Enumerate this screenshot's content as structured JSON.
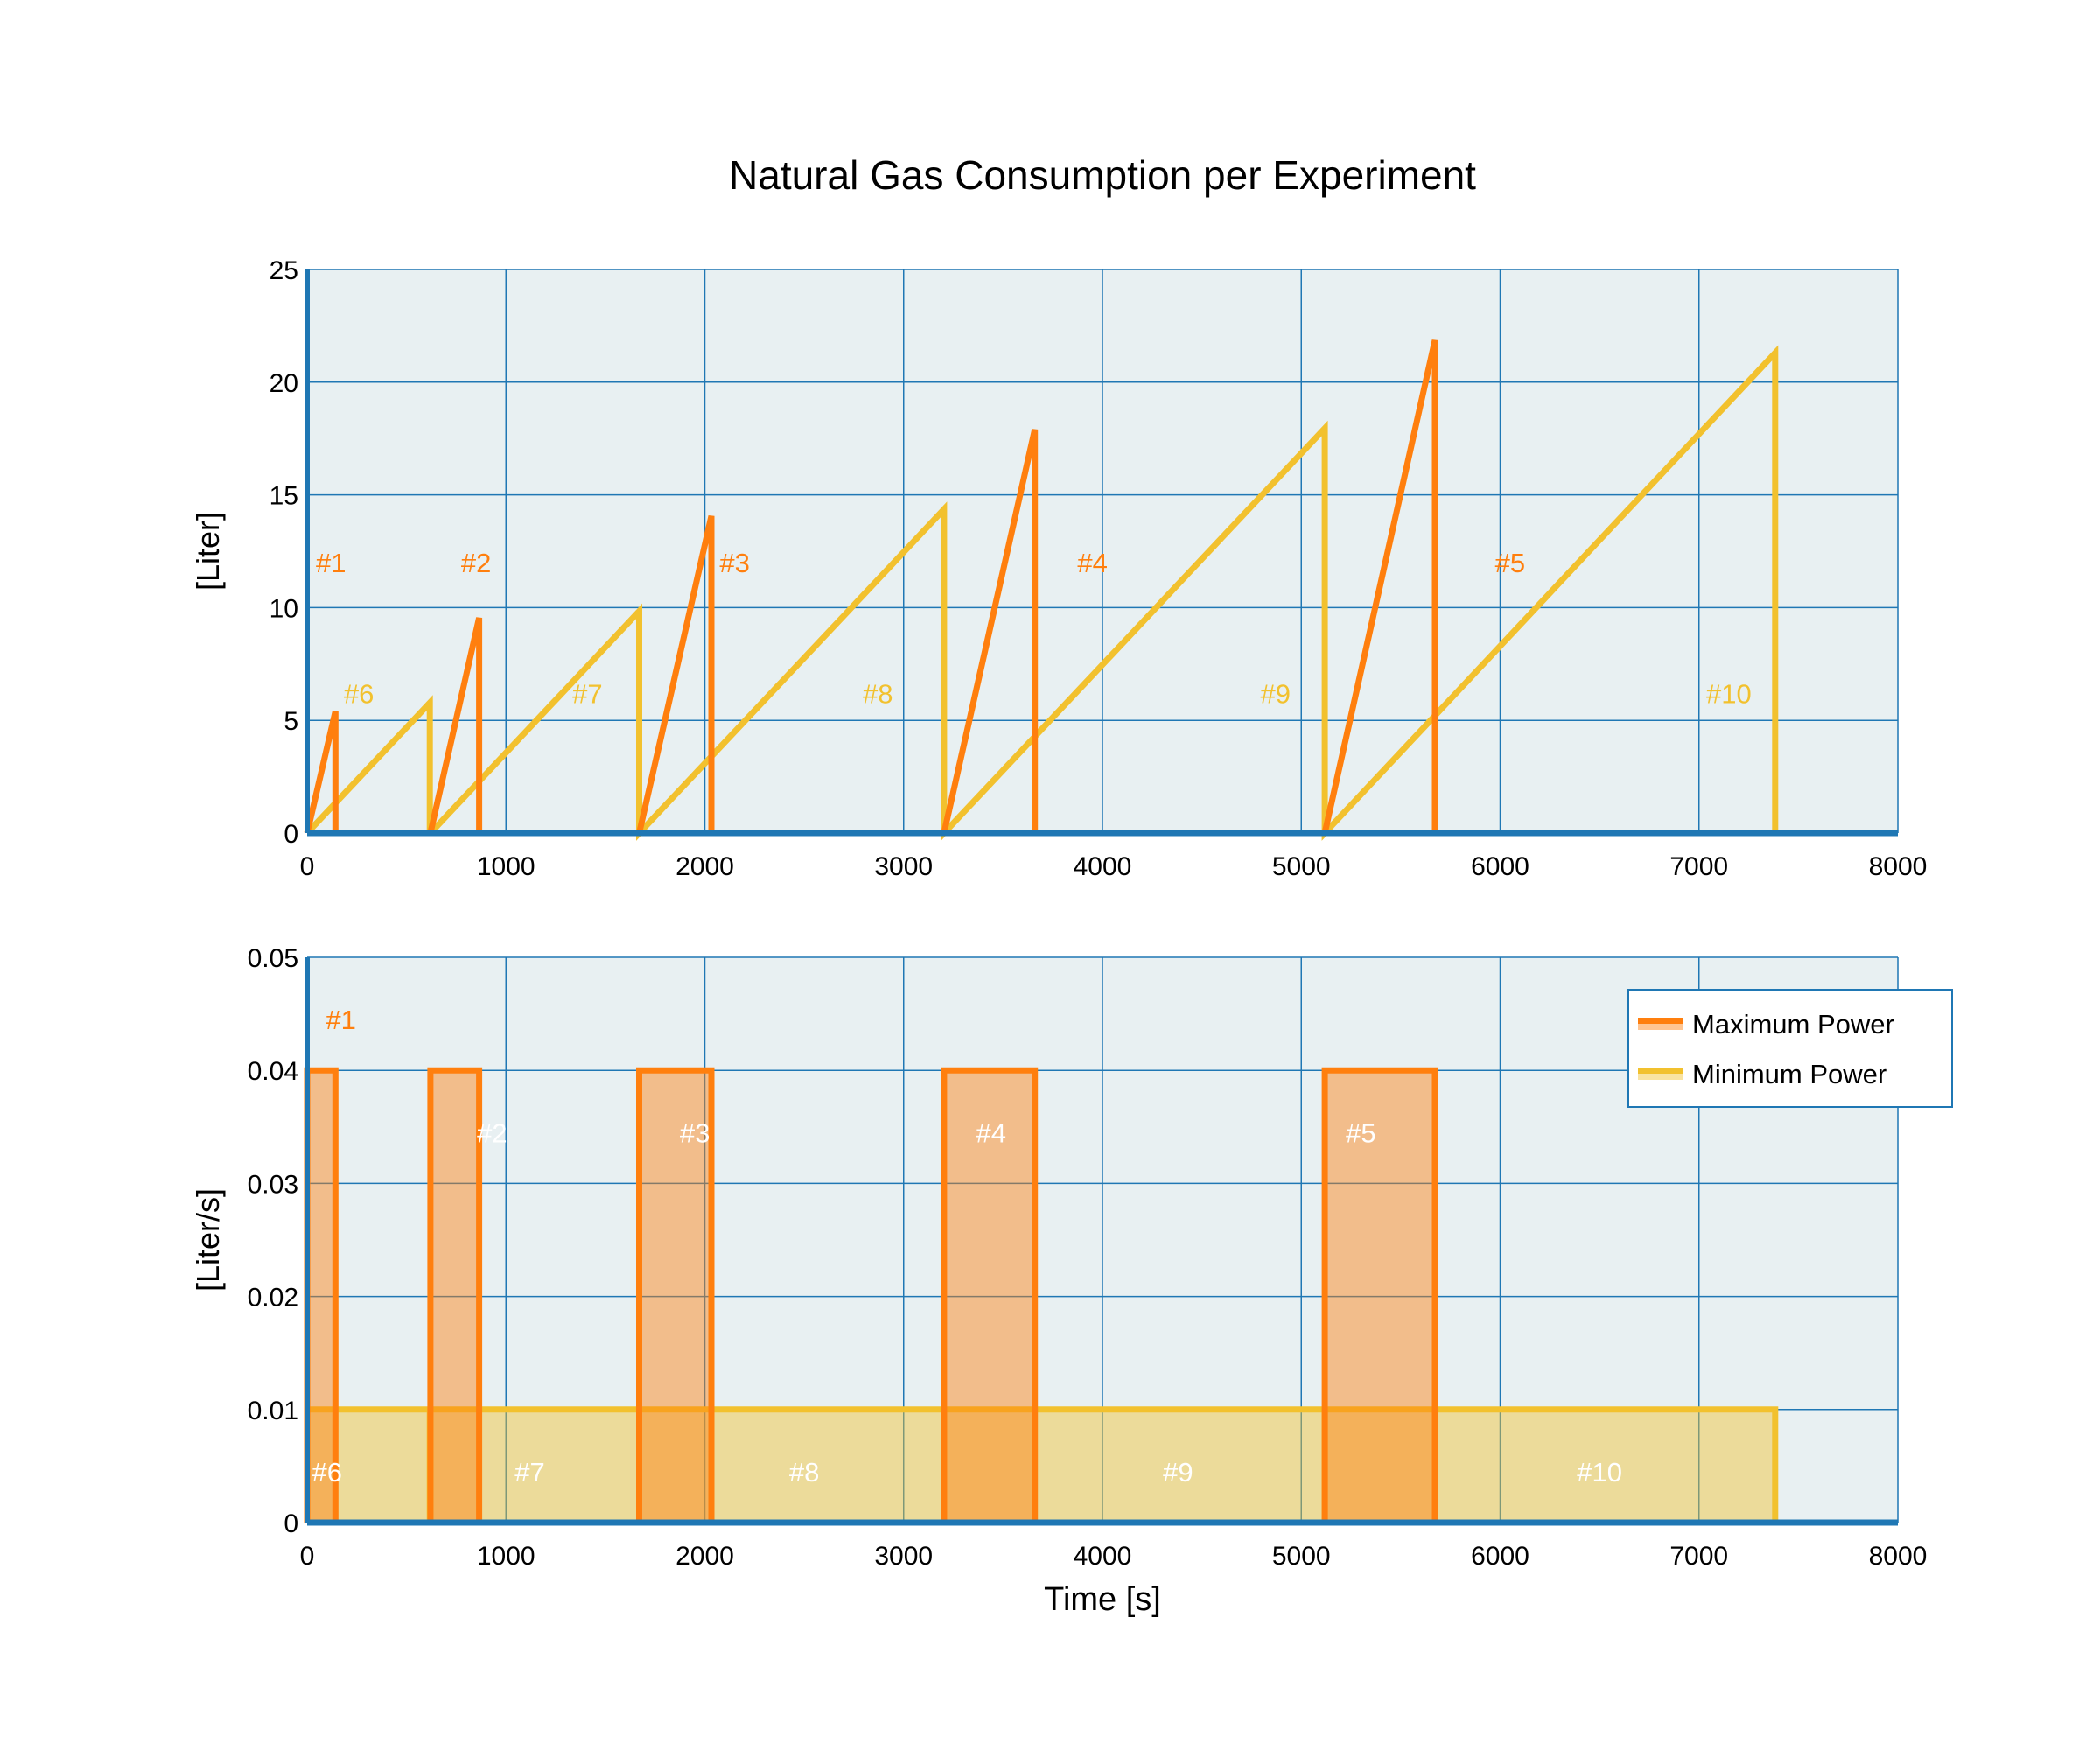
{
  "chart_data": [
    {
      "type": "line",
      "title": "Natural Gas Consumption per Experiment",
      "xlabel": "",
      "ylabel": "[Liter]",
      "xlim": [
        0,
        8000
      ],
      "ylim": [
        0,
        25
      ],
      "xticks": [
        0,
        1000,
        2000,
        3000,
        4000,
        5000,
        6000,
        7000,
        8000
      ],
      "yticks": [
        0,
        5,
        10,
        15,
        20,
        25
      ],
      "grid": true,
      "series": [
        {
          "name": "Maximum Power",
          "color": "#ff7f0e",
          "experiments": [
            {
              "label": "#1",
              "start": 0,
              "end": 142,
              "peak": 5.4
            },
            {
              "label": "#2",
              "start": 620,
              "end": 865,
              "peak": 9.55
            },
            {
              "label": "#3",
              "start": 1670,
              "end": 2033,
              "peak": 14.06
            },
            {
              "label": "#4",
              "start": 3203,
              "end": 3660,
              "peak": 17.9
            },
            {
              "label": "#5",
              "start": 5118,
              "end": 5672,
              "peak": 21.86
            }
          ]
        },
        {
          "name": "Minimum Power",
          "color": "#f2c12e",
          "experiments": [
            {
              "label": "#6",
              "start": 0,
              "end": 617,
              "peak": 5.78
            },
            {
              "label": "#7",
              "start": 620,
              "end": 1670,
              "peak": 9.84
            },
            {
              "label": "#8",
              "start": 1670,
              "end": 3203,
              "peak": 14.36
            },
            {
              "label": "#9",
              "start": 3203,
              "end": 5118,
              "peak": 17.95
            },
            {
              "label": "#10",
              "start": 5118,
              "end": 7383,
              "peak": 21.3
            }
          ]
        }
      ],
      "annotations": [
        {
          "text": "#1",
          "x": 120,
          "y": 12,
          "color": "#ff7f0e"
        },
        {
          "text": "#2",
          "x": 850,
          "y": 12,
          "color": "#ff7f0e"
        },
        {
          "text": "#3",
          "x": 2150,
          "y": 12,
          "color": "#ff7f0e"
        },
        {
          "text": "#4",
          "x": 3950,
          "y": 12,
          "color": "#ff7f0e"
        },
        {
          "text": "#5",
          "x": 6050,
          "y": 12,
          "color": "#ff7f0e"
        },
        {
          "text": "#6",
          "x": 260,
          "y": 6.2,
          "color": "#f2c12e"
        },
        {
          "text": "#7",
          "x": 1410,
          "y": 6.2,
          "color": "#f2c12e"
        },
        {
          "text": "#8",
          "x": 2870,
          "y": 6.2,
          "color": "#f2c12e"
        },
        {
          "text": "#9",
          "x": 4870,
          "y": 6.2,
          "color": "#f2c12e"
        },
        {
          "text": "#10",
          "x": 7150,
          "y": 6.2,
          "color": "#f2c12e"
        }
      ]
    },
    {
      "type": "area",
      "xlabel": "Time [s]",
      "ylabel": "[Liter/s]",
      "xlim": [
        0,
        8000
      ],
      "ylim": [
        0,
        0.05
      ],
      "xticks": [
        0,
        1000,
        2000,
        3000,
        4000,
        5000,
        6000,
        7000,
        8000
      ],
      "yticks": [
        "0",
        "0.01",
        "0.02",
        "0.03",
        "0.04",
        "0.05"
      ],
      "grid": true,
      "legend_placement": "top-right",
      "series": [
        {
          "name": "Maximum Power",
          "color": "#ff7f0e",
          "rate": 0.04
        },
        {
          "name": "Minimum Power",
          "color": "#f2c12e",
          "rate": 0.01
        }
      ],
      "annotations": [
        {
          "text": "#1",
          "x": 170,
          "y": 0.0445,
          "color": "#ff7f0e"
        },
        {
          "text": "#2",
          "x": 930,
          "y": 0.0345,
          "color": "#ffffff"
        },
        {
          "text": "#3",
          "x": 1950,
          "y": 0.0345,
          "color": "#ffffff"
        },
        {
          "text": "#4",
          "x": 3440,
          "y": 0.0345,
          "color": "#ffffff"
        },
        {
          "text": "#5",
          "x": 5300,
          "y": 0.0345,
          "color": "#ffffff"
        },
        {
          "text": "#6",
          "x": 100,
          "y": 0.0045,
          "color": "#ffffff"
        },
        {
          "text": "#7",
          "x": 1120,
          "y": 0.0045,
          "color": "#ffffff"
        },
        {
          "text": "#8",
          "x": 2500,
          "y": 0.0045,
          "color": "#ffffff"
        },
        {
          "text": "#9",
          "x": 4380,
          "y": 0.0045,
          "color": "#ffffff"
        },
        {
          "text": "#10",
          "x": 6500,
          "y": 0.0045,
          "color": "#ffffff"
        }
      ]
    }
  ],
  "colors": {
    "plot_bg": "#e8f0f2",
    "grid": "#1f77b4",
    "axis": "#1f77b4"
  }
}
